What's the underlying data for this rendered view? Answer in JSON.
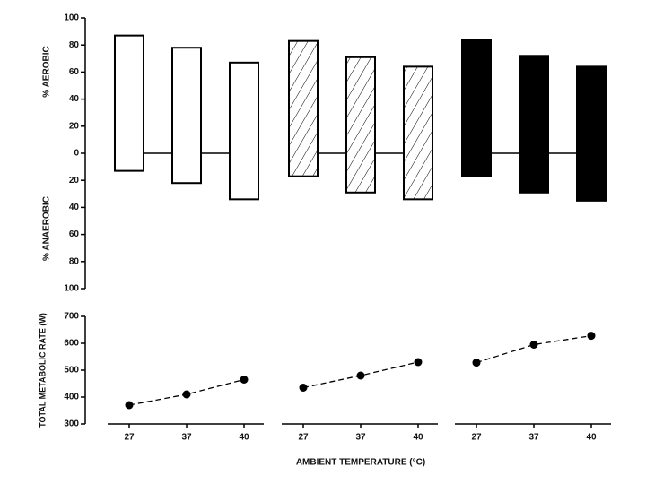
{
  "chart_data": [
    {
      "type": "floating-bar",
      "ylabel_top": "% AEROBIC",
      "ylabel_bottom": "% ANAEROBIC",
      "ylim": [
        -100,
        100
      ],
      "yticks": [
        100,
        80,
        60,
        40,
        20,
        0,
        {
          "value": -20,
          "label": "20"
        },
        {
          "value": -40,
          "label": "40"
        },
        {
          "value": -60,
          "label": "60"
        },
        {
          "value": -80,
          "label": "80"
        },
        {
          "value": -100,
          "label": "100"
        }
      ],
      "series": [
        {
          "style": "open",
          "color": "#ffffff",
          "values": [
            87,
            78,
            67
          ],
          "anaerobic": [
            -13,
            -22,
            -34
          ]
        },
        {
          "style": "hatched",
          "color": "#ffffff",
          "values": [
            83,
            71,
            64
          ],
          "anaerobic": [
            -17,
            -29,
            -34
          ]
        },
        {
          "style": "solid",
          "color": "#000000",
          "values": [
            84,
            72,
            64
          ],
          "anaerobic": [
            -17,
            -29,
            -35
          ]
        }
      ]
    },
    {
      "type": "line",
      "ylabel": "TOTAL METABOLIC RATE (W)",
      "xlabel": "AMBIENT TEMPERATURE (°C)",
      "categories": [
        "27",
        "37",
        "40"
      ],
      "ylim": [
        300,
        700
      ],
      "yticks": [
        300,
        400,
        500,
        600,
        700
      ],
      "series": [
        {
          "color": "#000000",
          "values": [
            370,
            410,
            465
          ]
        },
        {
          "color": "#000000",
          "values": [
            435,
            480,
            530
          ]
        },
        {
          "color": "#000000",
          "values": [
            528,
            595,
            628
          ]
        }
      ]
    }
  ]
}
